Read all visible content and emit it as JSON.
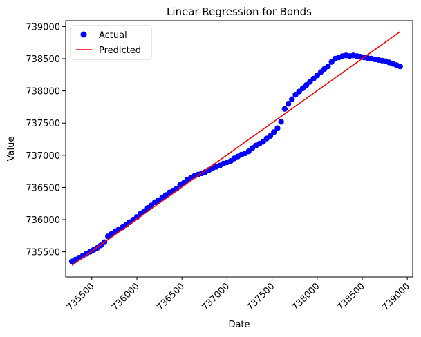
{
  "chart_data": {
    "type": "scatter",
    "title": "Linear Regression for Bonds",
    "xlabel": "Date",
    "ylabel": "Value",
    "xlim": [
      735210,
      739060
    ],
    "ylim": [
      735110,
      739090
    ],
    "xticks": [
      735500,
      736000,
      736500,
      737000,
      737500,
      738000,
      738500,
      739000
    ],
    "yticks": [
      735500,
      736000,
      736500,
      737000,
      737500,
      738000,
      738500,
      739000
    ],
    "legend": {
      "placement": "top-left",
      "entries": [
        {
          "label": "Actual",
          "marker": "circle",
          "color": "#0000ff"
        },
        {
          "label": "Predicted",
          "marker": "line",
          "color": "#ff0000"
        }
      ]
    },
    "series": [
      {
        "name": "Actual",
        "kind": "scatter",
        "color": "#0000ff",
        "x": [
          735280,
          735320,
          735360,
          735400,
          735440,
          735480,
          735520,
          735560,
          735600,
          735640,
          735680,
          735720,
          735760,
          735800,
          735840,
          735880,
          735920,
          735960,
          736000,
          736040,
          736080,
          736120,
          736160,
          736200,
          736240,
          736280,
          736320,
          736360,
          736400,
          736440,
          736480,
          736520,
          736560,
          736600,
          736640,
          736680,
          736720,
          736760,
          736800,
          736840,
          736880,
          736920,
          736960,
          737000,
          737040,
          737080,
          737120,
          737160,
          737200,
          737240,
          737280,
          737320,
          737360,
          737400,
          737440,
          737480,
          737520,
          737560,
          737600,
          737640,
          737680,
          737720,
          737760,
          737800,
          737840,
          737880,
          737920,
          737960,
          738000,
          738040,
          738080,
          738120,
          738160,
          738200,
          738240,
          738280,
          738320,
          738360,
          738400,
          738440,
          738480,
          738520,
          738560,
          738600,
          738640,
          738680,
          738720,
          738760,
          738800,
          738840,
          738880,
          738920
        ],
        "y": [
          735350,
          735380,
          735410,
          735440,
          735470,
          735500,
          735530,
          735560,
          735600,
          735650,
          735740,
          735780,
          735820,
          735850,
          735880,
          735920,
          735960,
          736000,
          736040,
          736090,
          736130,
          736180,
          736220,
          736270,
          736300,
          736340,
          736380,
          736420,
          736450,
          736480,
          736540,
          736570,
          736620,
          736650,
          736680,
          736700,
          736720,
          736740,
          736770,
          736800,
          736820,
          736840,
          736870,
          736890,
          736910,
          736950,
          736980,
          737010,
          737030,
          737060,
          737110,
          737150,
          737180,
          737210,
          737260,
          737300,
          737360,
          737420,
          737520,
          737720,
          737800,
          737870,
          737940,
          737990,
          738040,
          738090,
          738140,
          738190,
          738240,
          738290,
          738340,
          738380,
          738450,
          738500,
          738520,
          738540,
          738550,
          738540,
          738550,
          738540,
          738530,
          738520,
          738510,
          738500,
          738490,
          738480,
          738470,
          738460,
          738440,
          738420,
          738400,
          738380
        ]
      },
      {
        "name": "Predicted",
        "kind": "line",
        "color": "#ff0000",
        "x": [
          735280,
          738920
        ],
        "y": [
          735290,
          738920
        ]
      }
    ]
  }
}
